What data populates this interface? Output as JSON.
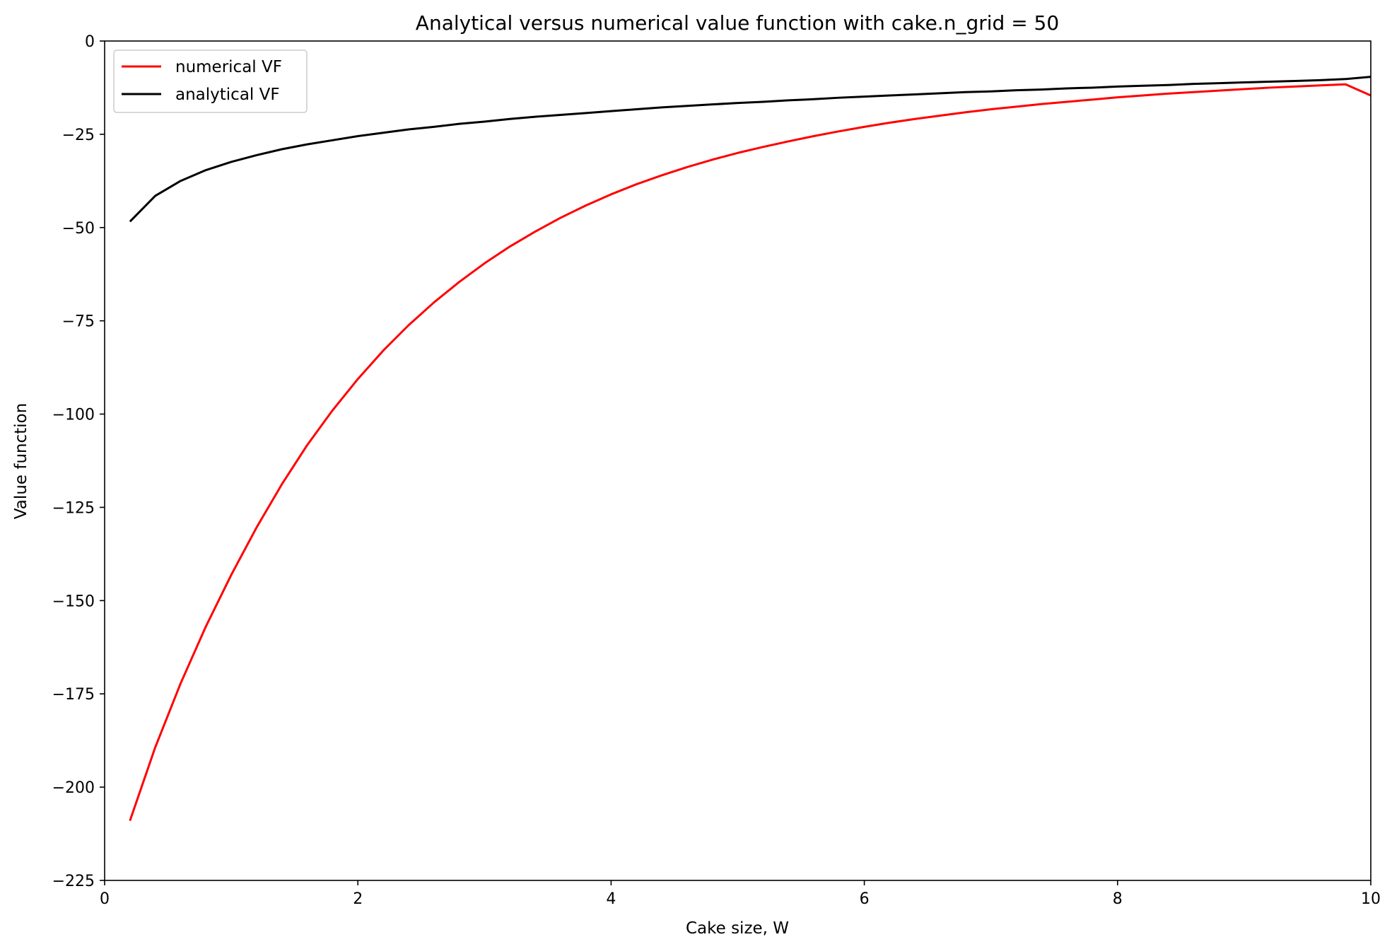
{
  "chart_data": {
    "type": "line",
    "title": "Analytical versus numerical value function with cake.n_grid = 50",
    "xlabel": "Cake size, W",
    "ylabel": "Value function",
    "xlim": [
      0,
      10
    ],
    "ylim": [
      -225,
      0
    ],
    "x_ticks": [
      0,
      2,
      4,
      6,
      8,
      10
    ],
    "y_ticks": [
      0,
      -25,
      -50,
      -75,
      -100,
      -125,
      -150,
      -175,
      -200,
      -225
    ],
    "x_tick_labels": [
      "0",
      "2",
      "4",
      "6",
      "8",
      "10"
    ],
    "y_tick_labels": [
      "0",
      "−25",
      "−50",
      "−75",
      "−100",
      "−125",
      "−150",
      "−175",
      "−200",
      "−225"
    ],
    "grid": false,
    "legend_position": "top-left",
    "x": [
      0.2,
      0.4,
      0.6,
      0.8,
      1.0,
      1.2,
      1.4,
      1.6,
      1.8,
      2.0,
      2.2,
      2.4,
      2.6,
      2.8,
      3.0,
      3.2,
      3.4,
      3.6,
      3.8,
      4.0,
      4.2,
      4.4,
      4.6,
      4.8,
      5.0,
      5.2,
      5.4,
      5.6,
      5.8,
      6.0,
      6.2,
      6.4,
      6.6,
      6.8,
      7.0,
      7.2,
      7.4,
      7.6,
      7.8,
      8.0,
      8.2,
      8.4,
      8.6,
      8.8,
      9.0,
      9.2,
      9.4,
      9.6,
      9.8,
      10.0
    ],
    "series": [
      {
        "name": "numerical VF",
        "color": "#ff0000",
        "values": [
          -209.0,
          -189.3,
          -172.2,
          -156.9,
          -143.1,
          -130.4,
          -118.8,
          -108.3,
          -99.0,
          -90.6,
          -83.0,
          -76.2,
          -70.1,
          -64.6,
          -59.6,
          -55.1,
          -51.1,
          -47.4,
          -44.1,
          -41.1,
          -38.4,
          -36.0,
          -33.8,
          -31.8,
          -30.0,
          -28.4,
          -26.9,
          -25.5,
          -24.2,
          -23.0,
          -21.9,
          -20.9,
          -20.0,
          -19.1,
          -18.3,
          -17.6,
          -16.9,
          -16.3,
          -15.7,
          -15.1,
          -14.6,
          -14.1,
          -13.7,
          -13.3,
          -12.9,
          -12.5,
          -12.2,
          -11.9,
          -11.6,
          -14.6
        ]
      },
      {
        "name": "analytical VF",
        "color": "#000000",
        "values": [
          -48.4,
          -41.5,
          -37.5,
          -34.6,
          -32.4,
          -30.6,
          -29.0,
          -27.7,
          -26.6,
          -25.5,
          -24.6,
          -23.7,
          -23.0,
          -22.2,
          -21.6,
          -20.9,
          -20.3,
          -19.8,
          -19.3,
          -18.8,
          -18.3,
          -17.8,
          -17.4,
          -17.0,
          -16.6,
          -16.3,
          -15.9,
          -15.6,
          -15.2,
          -14.9,
          -14.6,
          -14.3,
          -14.0,
          -13.7,
          -13.5,
          -13.2,
          -13.0,
          -12.7,
          -12.5,
          -12.2,
          -12.0,
          -11.8,
          -11.5,
          -11.3,
          -11.1,
          -10.9,
          -10.7,
          -10.5,
          -10.2,
          -9.6
        ]
      }
    ]
  }
}
